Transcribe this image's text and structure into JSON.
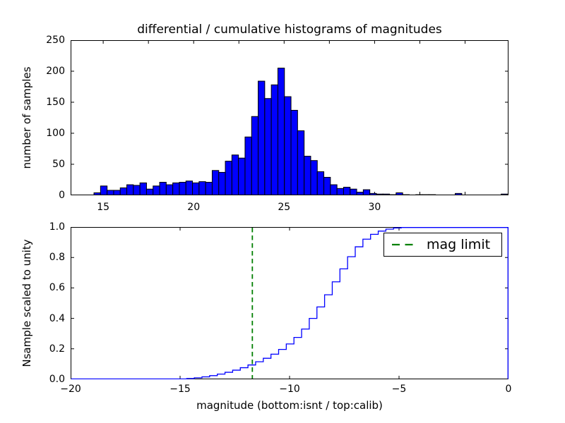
{
  "figure": {
    "background_color": "#ffffff",
    "axis_color": "#000000"
  },
  "chart_data": [
    {
      "type": "bar",
      "id": "differential-histogram",
      "title": "differential / cumulative histograms of magnitudes",
      "ylabel": "number of samples",
      "xlim": [
        13.2,
        37.4
      ],
      "ylim": [
        0,
        250
      ],
      "xtick_values": [
        15,
        20,
        25,
        30
      ],
      "xtick_labels": [
        "15",
        "20",
        "25",
        "30"
      ],
      "xtick_marks": [
        15,
        17.5,
        20,
        22.5,
        25,
        27.5,
        30,
        32.5,
        35
      ],
      "ytick_values": [
        0,
        50,
        100,
        150,
        200,
        250
      ],
      "ytick_labels": [
        "0",
        "50",
        "100",
        "150",
        "200",
        "250"
      ],
      "grid": false,
      "bar_fill": "#0000ff",
      "bar_edge": "#000000",
      "bins_start": 14.49,
      "bin_width": 0.363,
      "counts": [
        4,
        15,
        8,
        8,
        12,
        17,
        16,
        20,
        10,
        15,
        21,
        17,
        20,
        21,
        23,
        20,
        22,
        21,
        40,
        37,
        55,
        65,
        60,
        94,
        127,
        184,
        156,
        178,
        205,
        159,
        137,
        104,
        63,
        56,
        38,
        29,
        17,
        11,
        13,
        10,
        5,
        9,
        3,
        2,
        2,
        1,
        4,
        1,
        0,
        1,
        1,
        1,
        0,
        0,
        0,
        3,
        0,
        0,
        0,
        0,
        0,
        0,
        2
      ]
    },
    {
      "type": "line",
      "id": "cumulative-histogram",
      "style": "step",
      "ylabel": "Nsample scaled to unity",
      "xlabel": "magnitude (bottom:isnt / top:calib)",
      "xlim": [
        -20,
        0
      ],
      "ylim": [
        0.0,
        1.0
      ],
      "xtick_values": [
        -20,
        -15,
        -10,
        -5,
        0
      ],
      "xtick_labels": [
        "−20",
        "−15",
        "−10",
        "−5",
        "0"
      ],
      "ytick_values": [
        0.0,
        0.2,
        0.4,
        0.6,
        0.8,
        1.0
      ],
      "ytick_labels": [
        "0.0",
        "0.2",
        "0.4",
        "0.6",
        "0.8",
        "1.0"
      ],
      "grid": false,
      "line_color": "#0000ff",
      "bin_width": 0.35,
      "cumulative_steps": [
        [
          -15.05,
          0.002
        ],
        [
          -14.7,
          0.005
        ],
        [
          -14.35,
          0.01
        ],
        [
          -14.0,
          0.016
        ],
        [
          -13.65,
          0.024
        ],
        [
          -13.3,
          0.034
        ],
        [
          -12.95,
          0.046
        ],
        [
          -12.6,
          0.06
        ],
        [
          -12.25,
          0.076
        ],
        [
          -11.9,
          0.094
        ],
        [
          -11.55,
          0.115
        ],
        [
          -11.2,
          0.138
        ],
        [
          -10.85,
          0.165
        ],
        [
          -10.5,
          0.196
        ],
        [
          -10.15,
          0.232
        ],
        [
          -9.8,
          0.275
        ],
        [
          -9.45,
          0.33
        ],
        [
          -9.1,
          0.4
        ],
        [
          -8.75,
          0.475
        ],
        [
          -8.4,
          0.555
        ],
        [
          -8.05,
          0.64
        ],
        [
          -7.7,
          0.725
        ],
        [
          -7.35,
          0.805
        ],
        [
          -7.0,
          0.87
        ],
        [
          -6.65,
          0.92
        ],
        [
          -6.3,
          0.952
        ],
        [
          -5.95,
          0.973
        ],
        [
          -5.6,
          0.986
        ],
        [
          -5.25,
          0.994
        ],
        [
          -4.9,
          0.998
        ],
        [
          -4.55,
          1.0
        ]
      ],
      "mag_limit_line": {
        "x": -11.7,
        "color": "#008000",
        "style": "dashed"
      },
      "legend": {
        "position": "upper right",
        "entries": [
          {
            "label": "mag limit",
            "color": "#008000",
            "style": "dashed"
          }
        ]
      }
    }
  ]
}
